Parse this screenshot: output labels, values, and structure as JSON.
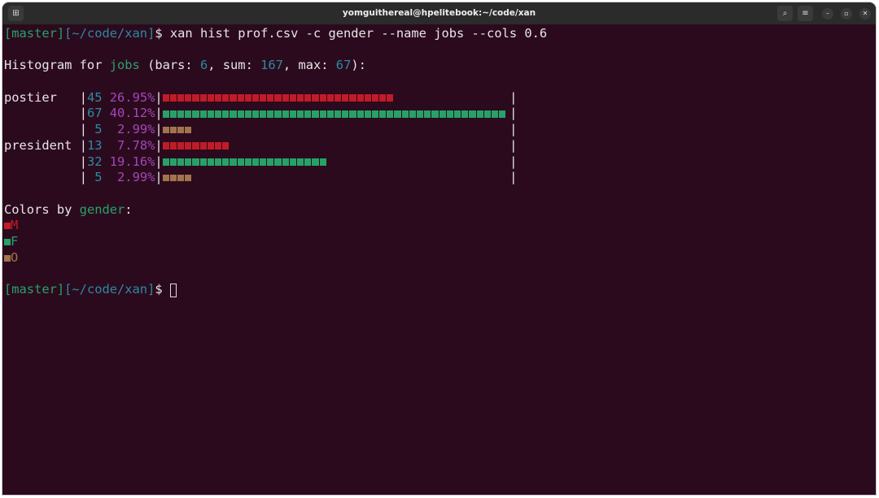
{
  "window": {
    "title": "yomguithereal@hpelitebook:~/code/xan"
  },
  "prompt": {
    "branch": "[master]",
    "path": "[~/code/xan]",
    "symbol": "$ ",
    "command": "xan hist prof.csv -c gender --name jobs --cols 0.6"
  },
  "header": {
    "prefix": "Histogram for ",
    "name": "jobs",
    "open": " (bars: ",
    "bars": "6",
    "sep1": ", sum: ",
    "sum": "167",
    "sep2": ", max: ",
    "max": "67",
    "close": "):"
  },
  "colors": {
    "M": "#c01c28",
    "F": "#26a269",
    "O": "#a2734c"
  },
  "chart_data": {
    "type": "bar",
    "bar_width_chars": 46,
    "rows": [
      {
        "label": "postier",
        "count": "45",
        "percent": "26.95%",
        "value": 45,
        "category": "M"
      },
      {
        "label": "",
        "count": "67",
        "percent": "40.12%",
        "value": 67,
        "category": "F"
      },
      {
        "label": "",
        "count": " 5",
        "percent": "2.99%",
        "value": 5,
        "category": "O"
      },
      {
        "label": "president",
        "count": "13",
        "percent": "7.78%",
        "value": 13,
        "category": "M"
      },
      {
        "label": "",
        "count": "32",
        "percent": "19.16%",
        "value": 32,
        "category": "F"
      },
      {
        "label": "",
        "count": " 5",
        "percent": "2.99%",
        "value": 5,
        "category": "O"
      }
    ],
    "max": 67
  },
  "legend": {
    "prefix": "Colors by ",
    "field": "gender",
    "suffix": ":",
    "items": [
      "M",
      "F",
      "O"
    ]
  }
}
